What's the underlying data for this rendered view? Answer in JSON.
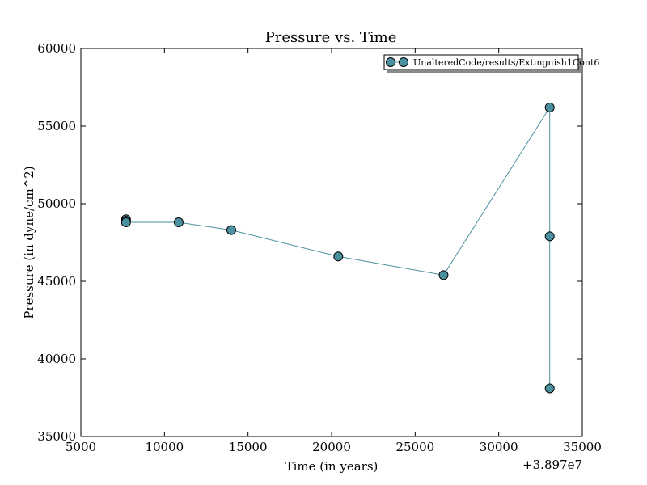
{
  "chart_data": {
    "type": "line",
    "title": "Pressure vs. Time",
    "xlabel": "Time (in years)",
    "ylabel": "Pressure (in dyne/cm^2)",
    "x_offset_label": "+3.897e7",
    "xlim": [
      5000,
      35000
    ],
    "ylim": [
      35000,
      60000
    ],
    "xticks": [
      5000,
      10000,
      15000,
      20000,
      25000,
      30000,
      35000
    ],
    "yticks": [
      35000,
      40000,
      45000,
      50000,
      55000,
      60000
    ],
    "grid": false,
    "legend_position": "top-right",
    "colors": {
      "marker": "#4a91a0",
      "line": "#4a91a0",
      "marker_edge": "#000000"
    },
    "series": [
      {
        "name": "UnalteredCode/results/Extinguish1Cont6",
        "x": [
          7700,
          7700,
          7700,
          10850,
          14000,
          20400,
          26700,
          33050,
          33050,
          33050
        ],
        "y": [
          49000,
          48900,
          48800,
          48800,
          48300,
          46600,
          45400,
          56200,
          47900,
          38100
        ]
      }
    ]
  }
}
